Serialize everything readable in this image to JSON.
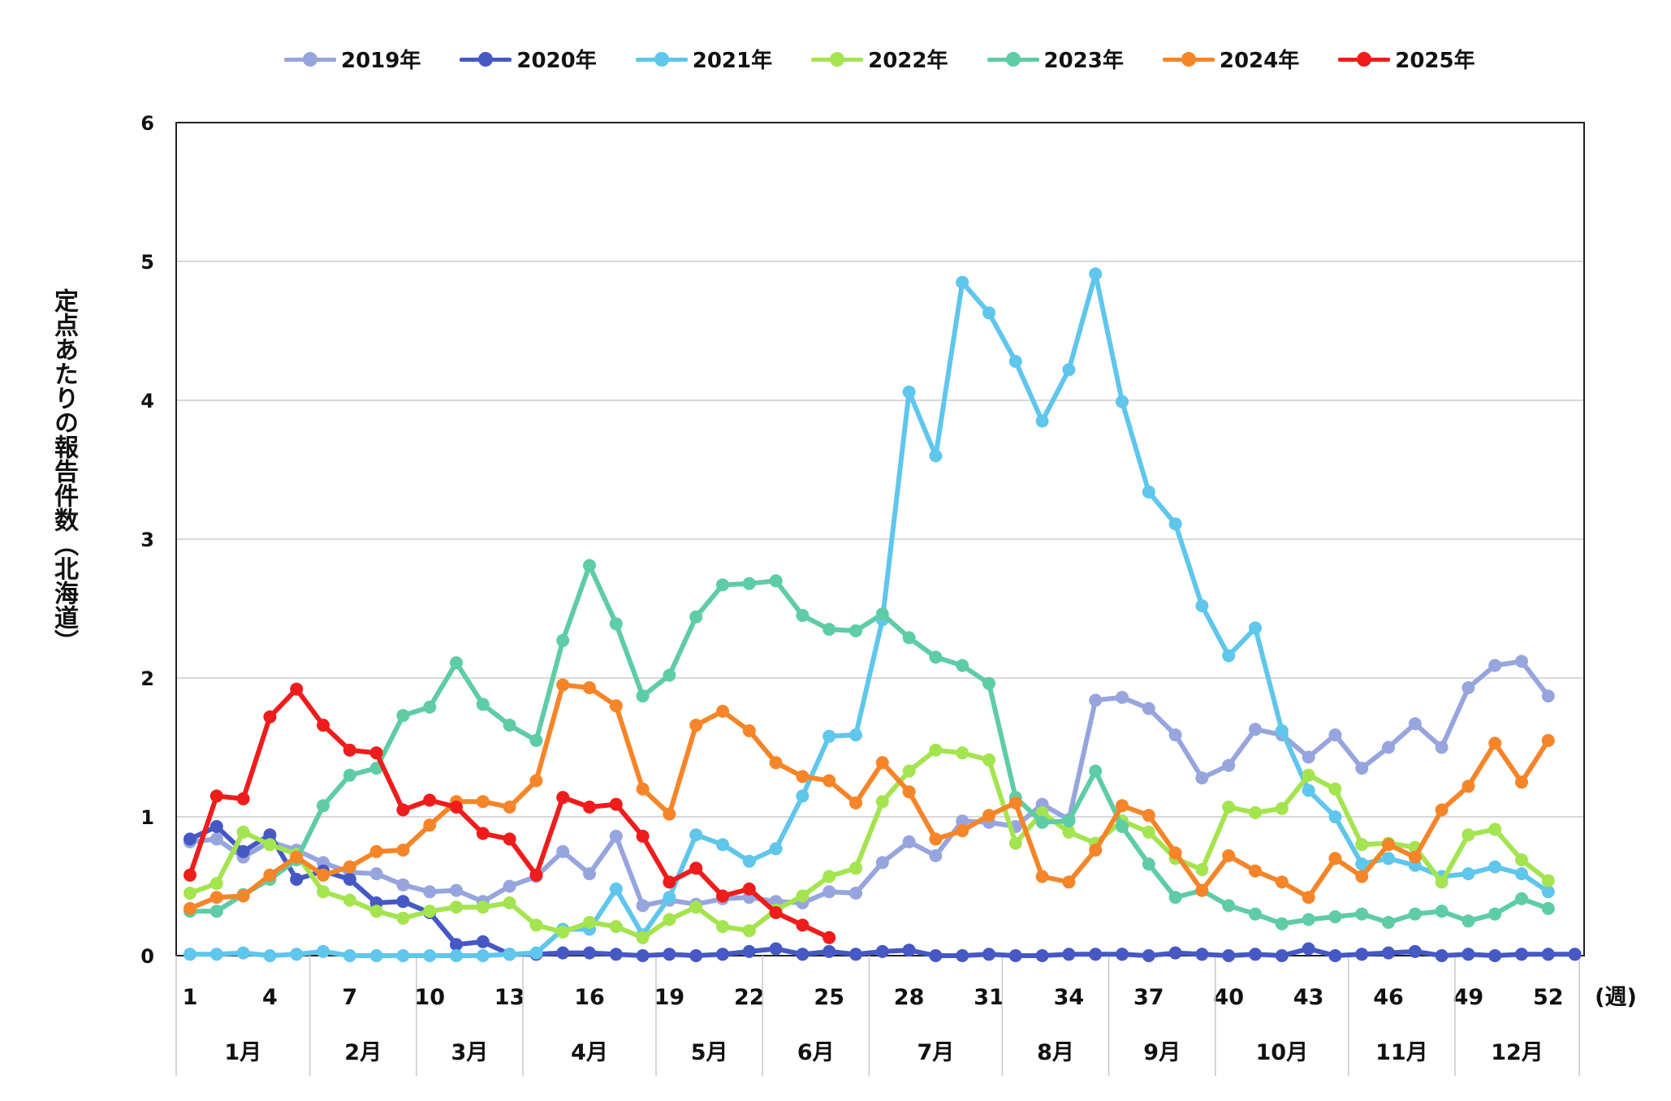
{
  "chart_data": {
    "type": "line",
    "ylabel": "定点あたりの報告件数（北海道）",
    "xunit": "(週)",
    "ylim": [
      0,
      6
    ],
    "yticks": [
      "0",
      "1",
      "2",
      "3",
      "4",
      "5",
      "6"
    ],
    "xtick_labels": [
      "1",
      "4",
      "7",
      "10",
      "13",
      "16",
      "19",
      "22",
      "25",
      "28",
      "31",
      "34",
      "37",
      "40",
      "43",
      "46",
      "49",
      "52"
    ],
    "months": [
      "1月",
      "2月",
      "3月",
      "4月",
      "5月",
      "6月",
      "7月",
      "8月",
      "9月",
      "10月",
      "11月",
      "12月"
    ],
    "legend_position": "top",
    "grid": "horizontal",
    "series": [
      {
        "name": "2019年",
        "color": "#97a5de",
        "values": [
          0.82,
          0.84,
          0.71,
          0.82,
          0.76,
          0.67,
          0.6,
          0.59,
          0.51,
          0.46,
          0.47,
          0.39,
          0.5,
          0.57,
          0.75,
          0.59,
          0.86,
          0.36,
          0.4,
          0.37,
          0.41,
          0.42,
          0.39,
          0.38,
          0.46,
          0.45,
          0.67,
          0.82,
          0.72,
          0.97,
          0.96,
          0.93,
          1.09,
          0.98,
          1.84,
          1.86,
          1.78,
          1.59,
          1.28,
          1.37,
          1.63,
          1.59,
          1.43,
          1.59,
          1.35,
          1.5,
          1.67,
          1.5,
          1.93,
          2.09,
          2.12,
          1.87
        ]
      },
      {
        "name": "2020年",
        "color": "#4658c4",
        "values": [
          0.84,
          0.93,
          0.75,
          0.87,
          0.55,
          0.61,
          0.55,
          0.38,
          0.39,
          0.31,
          0.08,
          0.1,
          0.01,
          0.01,
          0.02,
          0.02,
          0.01,
          0.0,
          0.01,
          0.0,
          0.01,
          0.03,
          0.05,
          0.01,
          0.03,
          0.01,
          0.03,
          0.04,
          0.0,
          0.0,
          0.01,
          0.0,
          0.0,
          0.01,
          0.01,
          0.01,
          0.0,
          0.02,
          0.01,
          0.0,
          0.01,
          0.0,
          0.05,
          0.0,
          0.01,
          0.02,
          0.03,
          0.0,
          0.01,
          0.0,
          0.01,
          0.01,
          0.01
        ]
      },
      {
        "name": "2021年",
        "color": "#5fc6ec",
        "values": [
          0.01,
          0.01,
          0.02,
          0.0,
          0.01,
          0.03,
          0.0,
          0.0,
          0.0,
          0.0,
          0.0,
          0.0,
          0.01,
          0.02,
          0.19,
          0.19,
          0.48,
          0.15,
          0.42,
          0.87,
          0.8,
          0.68,
          0.77,
          1.15,
          1.58,
          1.59,
          2.42,
          4.06,
          3.6,
          4.85,
          4.63,
          4.28,
          3.85,
          4.22,
          4.91,
          3.99,
          3.34,
          3.11,
          2.52,
          2.16,
          2.36,
          1.62,
          1.19,
          1.0,
          0.66,
          0.7,
          0.65,
          0.57,
          0.59,
          0.64,
          0.59,
          0.46
        ]
      },
      {
        "name": "2022年",
        "color": "#a4e44f",
        "values": [
          0.45,
          0.52,
          0.89,
          0.8,
          0.73,
          0.46,
          0.4,
          0.32,
          0.27,
          0.32,
          0.35,
          0.35,
          0.38,
          0.22,
          0.17,
          0.24,
          0.21,
          0.13,
          0.26,
          0.35,
          0.21,
          0.18,
          0.33,
          0.43,
          0.57,
          0.63,
          1.11,
          1.33,
          1.48,
          1.46,
          1.41,
          0.81,
          1.03,
          0.89,
          0.81,
          0.97,
          0.89,
          0.7,
          0.62,
          1.07,
          1.03,
          1.06,
          1.3,
          1.2,
          0.8,
          0.81,
          0.78,
          0.53,
          0.87,
          0.91,
          0.69,
          0.54
        ]
      },
      {
        "name": "2023年",
        "color": "#5ecca5",
        "values": [
          0.32,
          0.32,
          0.44,
          0.55,
          0.69,
          1.08,
          1.3,
          1.35,
          1.73,
          1.79,
          2.11,
          1.81,
          1.66,
          1.55,
          2.27,
          2.81,
          2.39,
          1.87,
          2.02,
          2.44,
          2.67,
          2.68,
          2.7,
          2.45,
          2.35,
          2.34,
          2.46,
          2.29,
          2.15,
          2.09,
          1.96,
          1.14,
          0.96,
          0.97,
          1.33,
          0.93,
          0.66,
          0.42,
          0.47,
          0.36,
          0.3,
          0.23,
          0.26,
          0.28,
          0.3,
          0.24,
          0.3,
          0.32,
          0.25,
          0.3,
          0.41,
          0.34
        ]
      },
      {
        "name": "2024年",
        "color": "#f58528",
        "values": [
          0.34,
          0.42,
          0.43,
          0.58,
          0.71,
          0.58,
          0.64,
          0.75,
          0.76,
          0.94,
          1.11,
          1.11,
          1.07,
          1.26,
          1.95,
          1.93,
          1.8,
          1.2,
          1.02,
          1.66,
          1.76,
          1.62,
          1.39,
          1.29,
          1.26,
          1.1,
          1.39,
          1.18,
          0.84,
          0.9,
          1.01,
          1.1,
          0.57,
          0.53,
          0.76,
          1.08,
          1.01,
          0.74,
          0.47,
          0.72,
          0.61,
          0.53,
          0.42,
          0.7,
          0.57,
          0.8,
          0.71,
          1.05,
          1.22,
          1.53,
          1.25,
          1.55
        ]
      },
      {
        "name": "2025年",
        "color": "#ef1c1c",
        "values": [
          0.58,
          1.15,
          1.13,
          1.72,
          1.92,
          1.66,
          1.48,
          1.46,
          1.05,
          1.12,
          1.07,
          0.88,
          0.84,
          0.58,
          1.14,
          1.07,
          1.09,
          0.86,
          0.53,
          0.63,
          0.43,
          0.48,
          0.31,
          0.22,
          0.13
        ]
      }
    ]
  }
}
